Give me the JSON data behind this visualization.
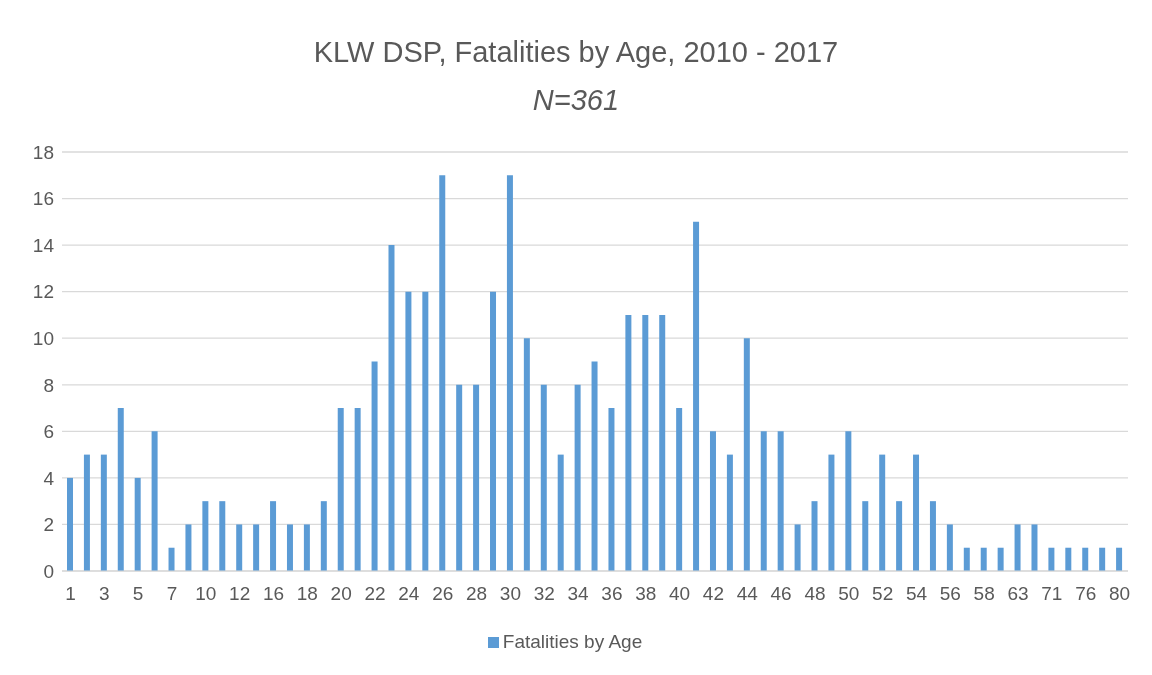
{
  "chart_data": {
    "type": "bar",
    "title": "KLW DSP, Fatalities by Age, 2010 - 2017",
    "subtitle": "N=361",
    "categories": [
      "1",
      null,
      "3",
      null,
      "5",
      null,
      "7",
      null,
      "10",
      null,
      "12",
      null,
      "16",
      null,
      "18",
      null,
      "20",
      null,
      "22",
      null,
      "24",
      null,
      "26",
      null,
      "28",
      null,
      "30",
      null,
      "32",
      null,
      "34",
      null,
      "36",
      null,
      "38",
      null,
      "40",
      null,
      "42",
      null,
      "44",
      null,
      "46",
      null,
      "48",
      null,
      "50",
      null,
      "52",
      null,
      "54",
      null,
      "56",
      null,
      "58",
      null,
      "63",
      null,
      "71",
      null,
      "76",
      null,
      "80"
    ],
    "series": [
      {
        "name": "Fatalities by Age",
        "color": "#5b9bd5",
        "values": [
          4,
          5,
          5,
          7,
          4,
          6,
          1,
          2,
          3,
          3,
          2,
          2,
          3,
          2,
          2,
          3,
          7,
          7,
          9,
          14,
          12,
          12,
          17,
          8,
          8,
          12,
          17,
          10,
          8,
          5,
          8,
          9,
          7,
          11,
          11,
          11,
          7,
          15,
          6,
          5,
          10,
          6,
          6,
          2,
          3,
          5,
          6,
          3,
          5,
          3,
          5,
          3,
          2,
          1,
          1,
          1,
          2,
          2,
          1,
          1,
          1,
          1,
          1
        ]
      }
    ],
    "ylim": [
      0,
      18
    ],
    "yticks": [
      0,
      2,
      4,
      6,
      8,
      10,
      12,
      14,
      16,
      18
    ],
    "grid": "y",
    "legend": "bottom"
  }
}
